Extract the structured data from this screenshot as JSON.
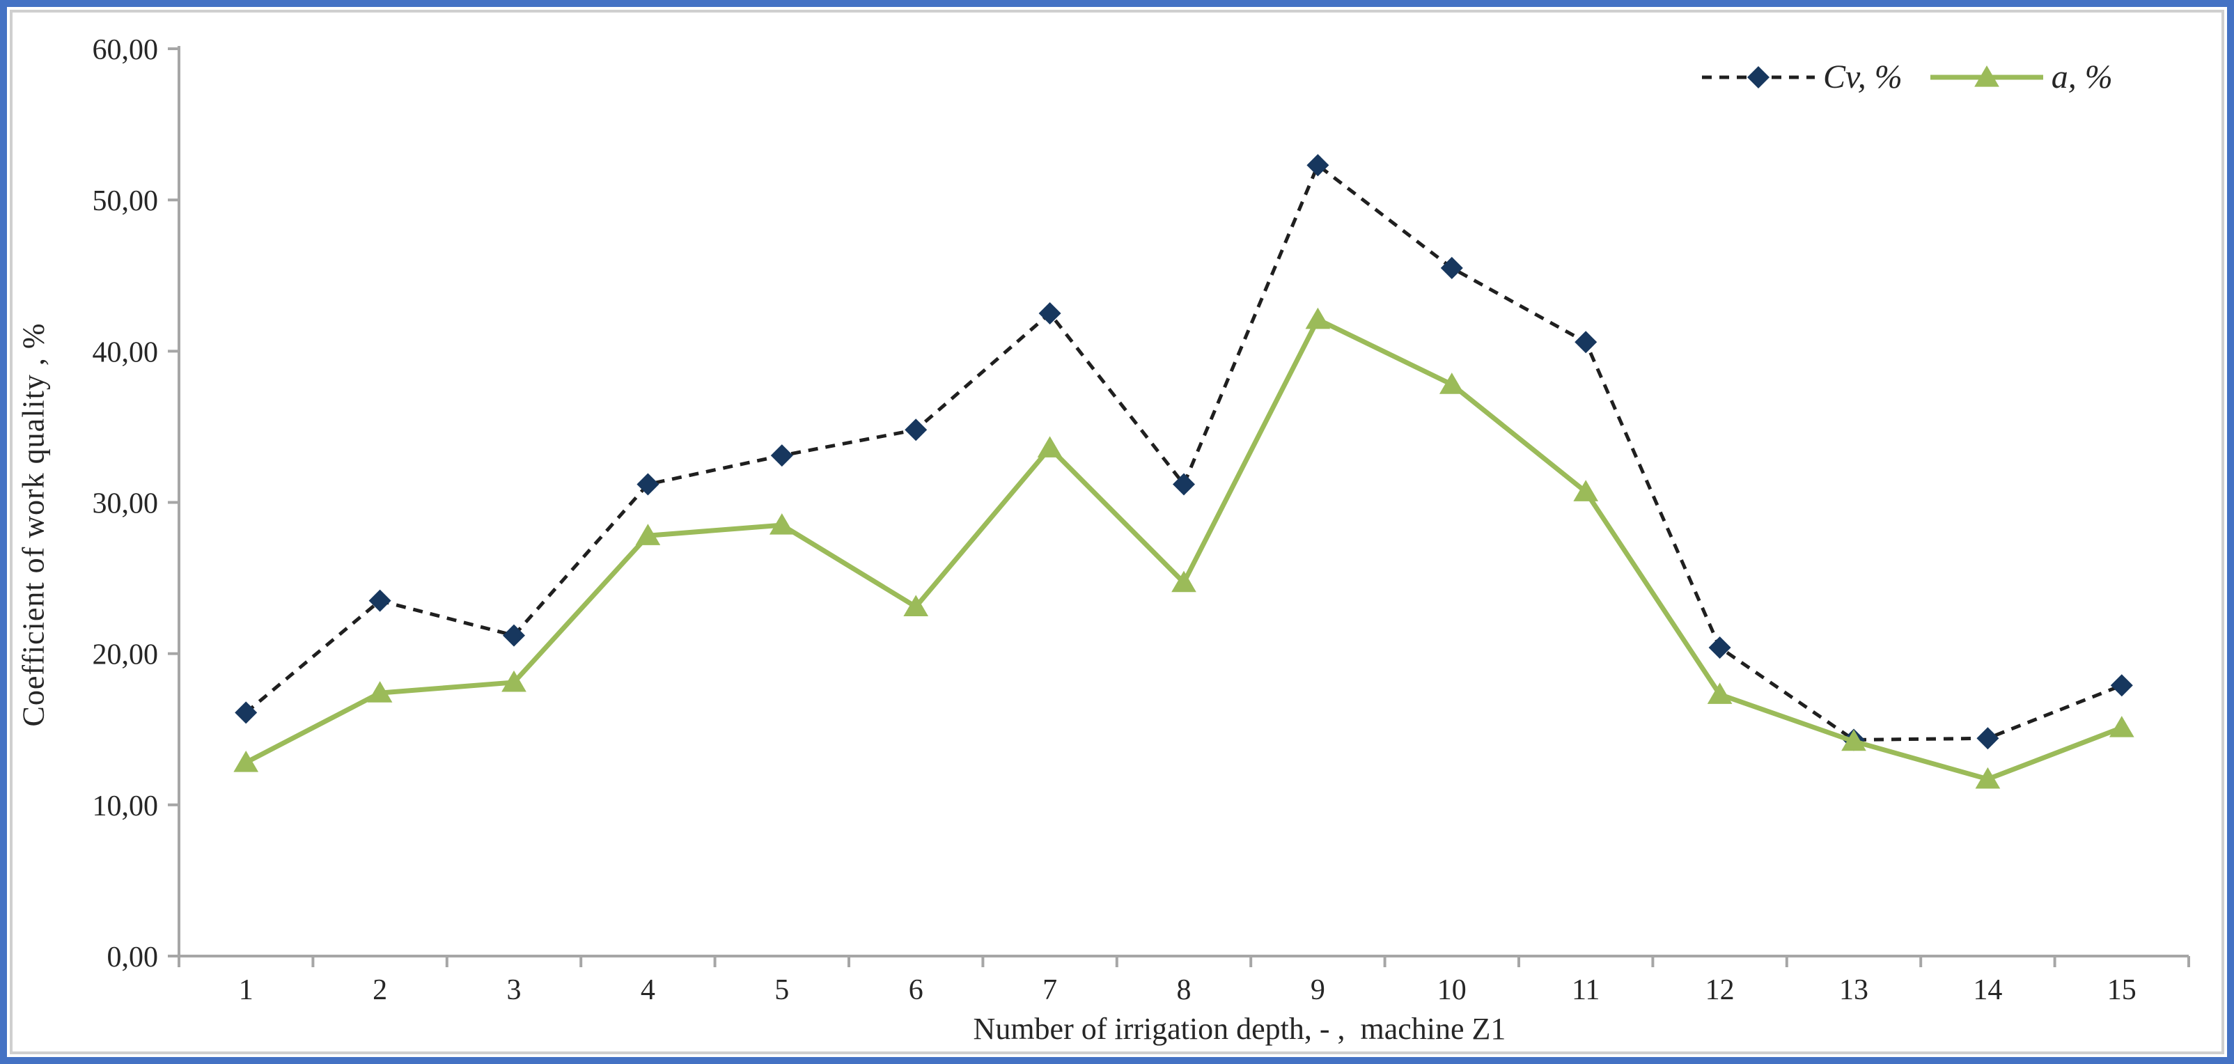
{
  "frame": {
    "border_color": "#4472C4",
    "inner_border_color": "#CFCFCF",
    "background": "#FFFFFF"
  },
  "axes": {
    "y_title": "Coefficient of work quality , %",
    "x_title": "Number of irrigation depth, - ,  machine Z1",
    "axis_color": "#A6A6A6",
    "text_color": "#262626"
  },
  "chart_data": {
    "type": "line",
    "title": "",
    "xlabel": "Number of irrigation depth, - ,  machine Z1",
    "ylabel": "Coefficient of work quality , %",
    "ylim": [
      0,
      60
    ],
    "ytick_step": 10,
    "ytick_labels": [
      "0,00",
      "10,00",
      "20,00",
      "30,00",
      "40,00",
      "50,00",
      "60,00"
    ],
    "x_labels": [
      "1",
      "2",
      "3",
      "4",
      "5",
      "6",
      "7",
      "8",
      "9",
      "10",
      "11",
      "12",
      "13",
      "14",
      "15"
    ],
    "grid": false,
    "legend_position": "top-right",
    "series": [
      {
        "name": "Cv, %",
        "style": "dashed",
        "marker": "diamond",
        "line_color": "#1F1F1F",
        "marker_color": "#17375E",
        "values": [
          16.1,
          23.5,
          21.2,
          31.2,
          33.1,
          34.8,
          42.5,
          31.2,
          52.3,
          45.5,
          40.6,
          20.4,
          14.3,
          14.4,
          17.9
        ]
      },
      {
        "name": "a, %",
        "style": "solid",
        "marker": "triangle",
        "line_color": "#9BBB59",
        "marker_color": "#9BBB59",
        "values": [
          12.8,
          17.4,
          18.1,
          27.8,
          28.5,
          23.1,
          33.6,
          24.7,
          42.1,
          37.8,
          30.7,
          17.3,
          14.2,
          11.7,
          15.1
        ]
      }
    ]
  }
}
